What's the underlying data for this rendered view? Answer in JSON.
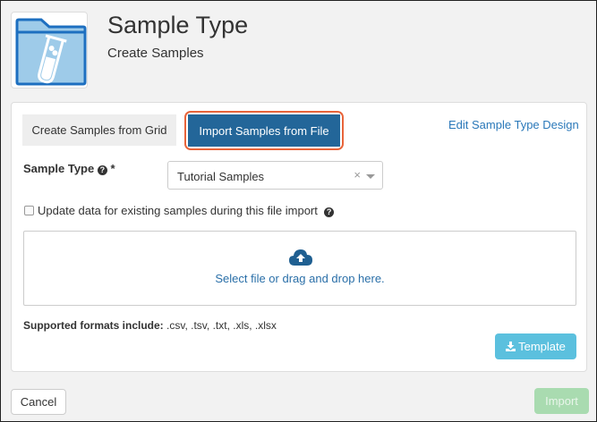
{
  "header": {
    "title": "Sample Type",
    "subtitle": "Create Samples",
    "icon": "folder-test-tube-icon"
  },
  "tabs": [
    {
      "label": "Create Samples from Grid",
      "active": false
    },
    {
      "label": "Import Samples from File",
      "active": true
    }
  ],
  "edit_link": "Edit Sample Type Design",
  "form": {
    "sample_type_label": "Sample Type",
    "required_mark": "*",
    "sample_type_value": "Tutorial Samples",
    "update_checkbox_label": "Update data for existing samples during this file import",
    "update_checked": false
  },
  "dropzone": {
    "text": "Select file or drag and drop here."
  },
  "formats": {
    "label": "Supported formats include:",
    "value": ".csv, .tsv, .txt, .xls, .xlsx"
  },
  "buttons": {
    "template": "Template",
    "cancel": "Cancel",
    "import": "Import"
  },
  "colors": {
    "primary": "#236699",
    "focus_ring": "#e8643a",
    "info": "#5bc0de",
    "success_disabled": "#a9dbb0",
    "link": "#2a78b9"
  }
}
